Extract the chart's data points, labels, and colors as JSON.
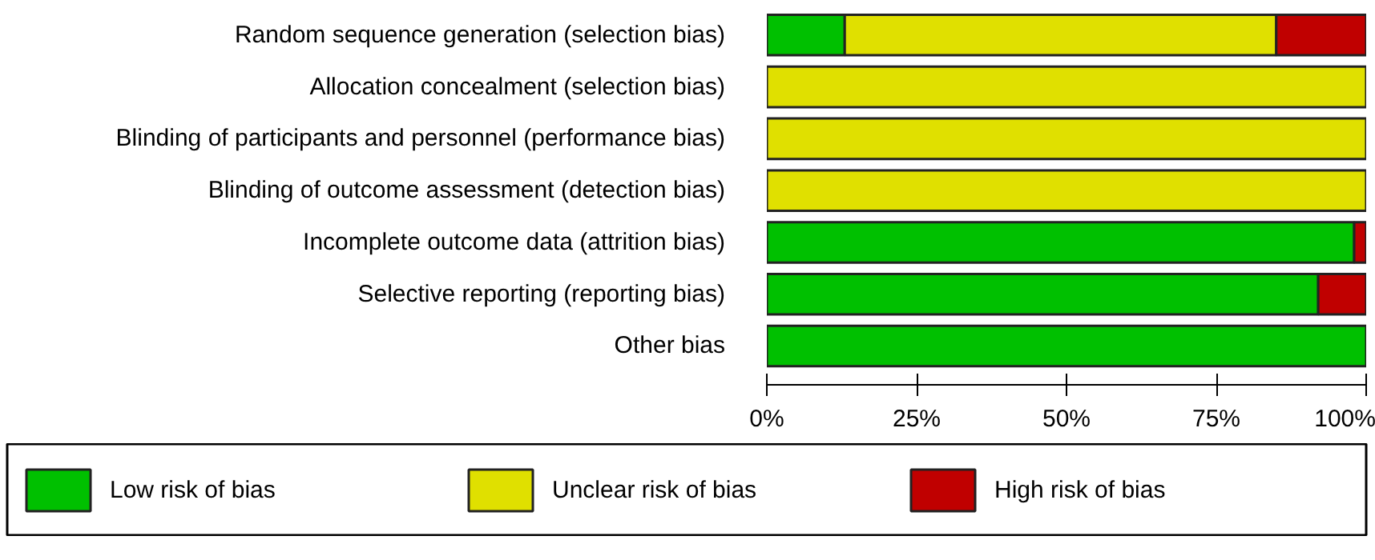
{
  "chart_data": {
    "type": "bar",
    "orientation": "horizontal",
    "stacked": true,
    "categories": [
      "Random sequence generation (selection bias)",
      "Allocation concealment (selection bias)",
      "Blinding of participants and personnel (performance bias)",
      "Blinding of outcome assessment (detection bias)",
      "Incomplete outcome data (attrition bias)",
      "Selective reporting (reporting bias)",
      "Other bias"
    ],
    "series": [
      {
        "name": "Low risk of bias",
        "color": "#00c000",
        "values": [
          13,
          0,
          0,
          0,
          98,
          92,
          100
        ]
      },
      {
        "name": "Unclear risk of bias",
        "color": "#e0e000",
        "values": [
          72,
          100,
          100,
          100,
          0,
          0,
          0
        ]
      },
      {
        "name": "High risk of bias",
        "color": "#c00000",
        "values": [
          15,
          0,
          0,
          0,
          2,
          8,
          0
        ]
      }
    ],
    "xlim": [
      0,
      100
    ],
    "xticks": [
      {
        "value": 0,
        "label": "0%"
      },
      {
        "value": 25,
        "label": "25%"
      },
      {
        "value": 50,
        "label": "50%"
      },
      {
        "value": 75,
        "label": "75%"
      },
      {
        "value": 100,
        "label": "100%"
      }
    ],
    "grid": false,
    "legend": "bottom"
  }
}
